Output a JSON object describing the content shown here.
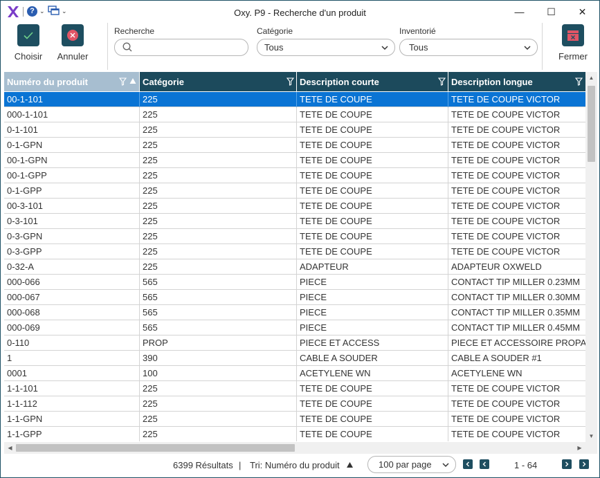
{
  "window": {
    "title": "Oxy. P9 - Recherche d'un produit",
    "minimize_glyph": "—",
    "maximize_glyph": "☐",
    "close_glyph": "✕",
    "help_glyph": "?",
    "caret_glyph": "⌄"
  },
  "toolbar": {
    "choose_label": "Choisir",
    "cancel_label": "Annuler",
    "close_label": "Fermer"
  },
  "filters": {
    "search_label": "Recherche",
    "search_value": "",
    "category_label": "Catégorie",
    "category_value": "Tous",
    "inventory_label": "Inventorié",
    "inventory_value": "Tous"
  },
  "grid": {
    "columns": [
      {
        "label": "Numéro du produit"
      },
      {
        "label": "Catégorie"
      },
      {
        "label": "Description courte"
      },
      {
        "label": "Description longue"
      }
    ],
    "rows": [
      [
        "00-1-101",
        "225",
        "TETE DE COUPE",
        "TETE DE COUPE VICTOR"
      ],
      [
        "000-1-101",
        "225",
        "TETE DE COUPE",
        "TETE DE COUPE VICTOR"
      ],
      [
        "0-1-101",
        "225",
        "TETE DE COUPE",
        "TETE DE COUPE VICTOR"
      ],
      [
        "0-1-GPN",
        "225",
        "TETE DE COUPE",
        "TETE DE COUPE VICTOR"
      ],
      [
        "00-1-GPN",
        "225",
        "TETE DE COUPE",
        "TETE DE COUPE VICTOR"
      ],
      [
        "00-1-GPP",
        "225",
        "TETE DE COUPE",
        "TETE DE COUPE VICTOR"
      ],
      [
        "0-1-GPP",
        "225",
        "TETE DE COUPE",
        "TETE DE COUPE VICTOR"
      ],
      [
        "00-3-101",
        "225",
        "TETE DE COUPE",
        "TETE DE COUPE VICTOR"
      ],
      [
        "0-3-101",
        "225",
        "TETE DE COUPE",
        "TETE DE COUPE VICTOR"
      ],
      [
        "0-3-GPN",
        "225",
        "TETE DE COUPE",
        "TETE DE COUPE VICTOR"
      ],
      [
        "0-3-GPP",
        "225",
        "TETE DE COUPE",
        "TETE DE COUPE VICTOR"
      ],
      [
        "0-32-A",
        "225",
        "ADAPTEUR",
        "ADAPTEUR OXWELD"
      ],
      [
        "000-066",
        "565",
        "PIECE",
        "CONTACT TIP MILLER 0.23MM"
      ],
      [
        "000-067",
        "565",
        "PIECE",
        "CONTACT TIP MILLER 0.30MM"
      ],
      [
        "000-068",
        "565",
        "PIECE",
        "CONTACT TIP MILLER 0.35MM"
      ],
      [
        "000-069",
        "565",
        "PIECE",
        "CONTACT TIP MILLER 0.45MM"
      ],
      [
        "0-110",
        "PROP",
        "PIECE ET ACCESS",
        "PIECE ET ACCESSOIRE PROPA"
      ],
      [
        "1",
        "390",
        "CABLE A SOUDER",
        "CABLE A SOUDER #1"
      ],
      [
        "0001",
        "100",
        "ACETYLENE WN",
        "ACETYLENE WN"
      ],
      [
        "1-1-101",
        "225",
        "TETE DE COUPE",
        "TETE DE COUPE VICTOR"
      ],
      [
        "1-1-112",
        "225",
        "TETE DE COUPE",
        "TETE DE COUPE VICTOR"
      ],
      [
        "1-1-GPN",
        "225",
        "TETE DE COUPE",
        "TETE DE COUPE VICTOR"
      ],
      [
        "1-1-GPP",
        "225",
        "TETE DE COUPE",
        "TETE DE COUPE VICTOR"
      ]
    ],
    "selected_row": 0
  },
  "footer": {
    "results": "6399 Résultats",
    "separator": "|",
    "sort_label": "Tri: Numéro du produit",
    "per_page": "100 par page",
    "range": "1 - 64"
  },
  "colors": {
    "header_bg": "#1c4a5c",
    "sorted_header_bg": "#a7bed0",
    "selection": "#0a74d4",
    "button_bg": "#1e4e60",
    "cancel_red": "#e05566",
    "logo_purple": "#7a3cc8"
  }
}
